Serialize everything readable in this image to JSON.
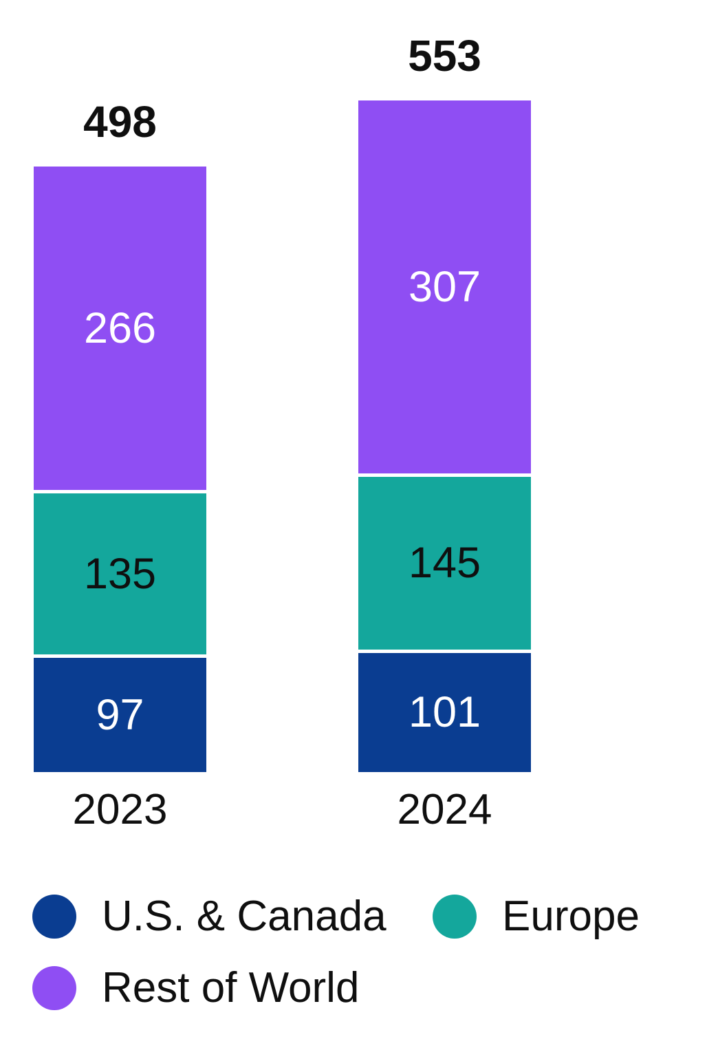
{
  "colors": {
    "background": "#ffffff",
    "text": "#0f0f0f",
    "separator": "#ffffff"
  },
  "chart_data": {
    "type": "bar",
    "stacked": true,
    "orientation": "vertical",
    "title": "",
    "xlabel": "",
    "ylabel": "",
    "grid": false,
    "axes_shown": false,
    "legend_position": "bottom-left",
    "categories": [
      "2023",
      "2024"
    ],
    "totals": [
      498,
      553
    ],
    "series": [
      {
        "name": "U.S. & Canada",
        "color": "#0A3D91",
        "label_color": "#ffffff",
        "values": [
          97,
          101
        ]
      },
      {
        "name": "Europe",
        "color": "#14A79C",
        "label_color": "#0f0f0f",
        "values": [
          135,
          145
        ]
      },
      {
        "name": "Rest of World",
        "color": "#8F4EF3",
        "label_color": "#ffffff",
        "values": [
          266,
          307
        ]
      }
    ]
  }
}
